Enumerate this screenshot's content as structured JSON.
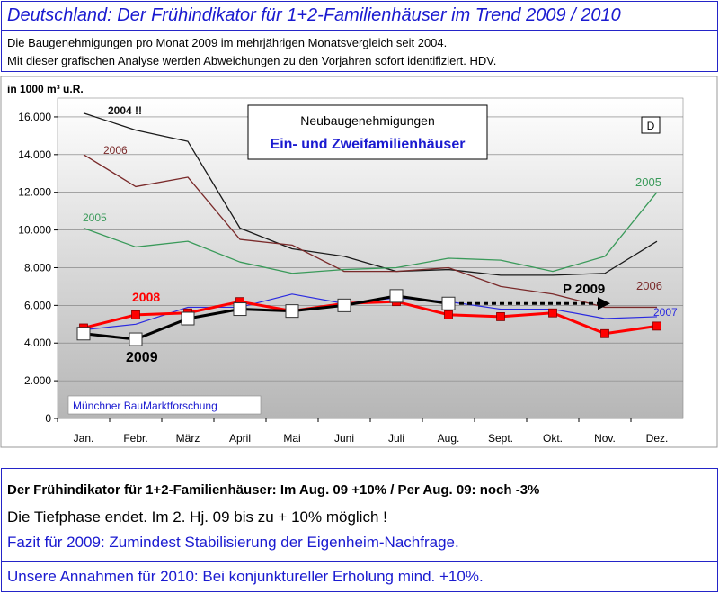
{
  "title": "Deutschland: Der Frühindikator für 1+2-Familienhäuser im Trend  2009 / 2010",
  "subtitle_lines": [
    "Die Baugenehmigungen  pro Monat 2009 im mehrjährigen Monatsvergleich seit 2004.",
    "Mit dieser grafischen Analyse werden Abweichungen zu den Vorjahren sofort identifiziert. HDV."
  ],
  "chart_data": {
    "type": "line",
    "ylabel": "in 1000 m³ u.R.",
    "ylim": [
      0,
      17000
    ],
    "yticks": [
      "0",
      "2.000",
      "4.000",
      "6.000",
      "8.000",
      "10.000",
      "12.000",
      "14.000",
      "16.000"
    ],
    "ytick_values": [
      0,
      2000,
      4000,
      6000,
      8000,
      10000,
      12000,
      14000,
      16000
    ],
    "categories": [
      "Jan.",
      "Febr.",
      "März",
      "April",
      "Mai",
      "Juni",
      "Juli",
      "Aug.",
      "Sept.",
      "Okt.",
      "Nov.",
      "Dez."
    ],
    "grid": true,
    "series": [
      {
        "name": "2004 !!",
        "color": "#1a1a1a",
        "values": [
          16200,
          15300,
          14700,
          10100,
          9000,
          8600,
          7800,
          7900,
          7600,
          7600,
          7700,
          9400
        ]
      },
      {
        "name": "2006",
        "color": "#7a2a2a",
        "values": [
          14000,
          12300,
          12800,
          9500,
          9200,
          7800,
          7800,
          8000,
          7000,
          6600,
          5900,
          5900
        ]
      },
      {
        "name": "2005",
        "color": "#3a9a5a",
        "values": [
          10100,
          9100,
          9400,
          8300,
          7700,
          7900,
          8000,
          8500,
          8400,
          7800,
          8600,
          12000
        ]
      },
      {
        "name": "2007",
        "color": "#2a2ae0",
        "values": [
          4700,
          5000,
          5900,
          5900,
          6600,
          6100,
          6400,
          6200,
          5800,
          5800,
          5300,
          5400
        ]
      },
      {
        "name": "2008",
        "color": "#ff0000",
        "values": [
          4800,
          5500,
          5600,
          6200,
          5700,
          6100,
          6200,
          5500,
          5400,
          5600,
          4500,
          4900
        ]
      },
      {
        "name": "2009",
        "color": "#000000",
        "values": [
          4500,
          4200,
          5300,
          5800,
          5700,
          6000,
          6500,
          6100,
          null,
          null,
          null,
          null
        ]
      }
    ],
    "projection": {
      "name": "P 2009",
      "from_index": 7,
      "to_index": 10,
      "value": 6100
    },
    "labels_on_chart": [
      {
        "text": "2004 !!",
        "series": "2004 !!"
      },
      {
        "text": "2006",
        "series": "2006"
      },
      {
        "text": "2006",
        "series": "2006"
      },
      {
        "text": "2005",
        "series": "2005"
      },
      {
        "text": "2005",
        "series": "2005"
      },
      {
        "text": "2007",
        "series": "2007"
      },
      {
        "text": "2008",
        "series": "2008"
      },
      {
        "text": "2009",
        "series": "2009"
      },
      {
        "text": "P 2009",
        "series": "2009"
      }
    ],
    "legend_box": {
      "line1": "Neubaugenehmigungen",
      "line2": "Ein- und Zweifamilienhäuser"
    },
    "region_badge": "D",
    "source": "Münchner BauMarktforschung"
  },
  "bottom": {
    "line1": "Der Frühindikator für 1+2-Familienhäuser: Im Aug. 09  +10% / Per Aug. 09: noch -3%",
    "line2": "Die Tiefphase endet.  Im 2. Hj. 09  bis zu + 10% möglich !",
    "line3": "Fazit für 2009: Zumindest Stabilisierung der Eigenheim-Nachfrage.",
    "line4": "Unsere Annahmen für 2010: Bei konjunktureller Erholung mind. +10%."
  },
  "colors": {
    "accent": "#1a1ad0",
    "plot_bg_top": "#ffffff",
    "plot_bg_bottom": "#b8b8b8"
  }
}
